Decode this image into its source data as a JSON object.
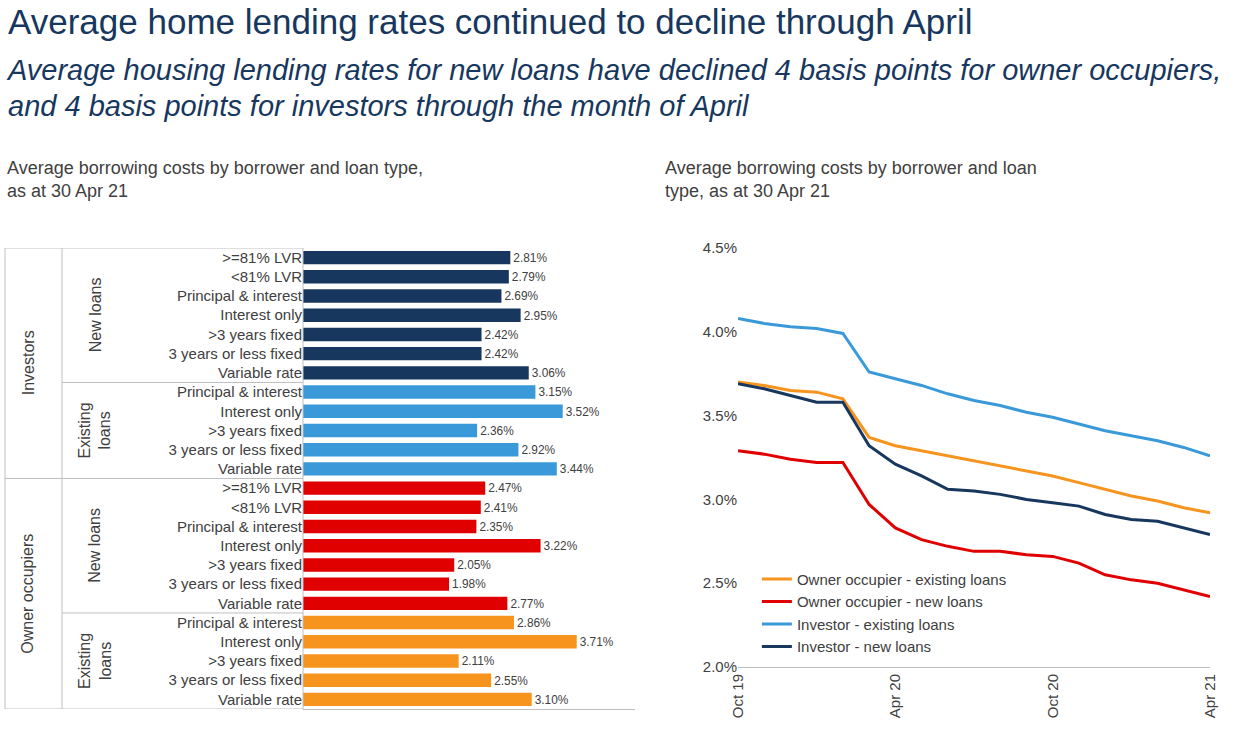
{
  "title": "Average home lending rates continued to decline through April",
  "subtitle": "Average housing lending rates for new loans have declined 4 basis points for owner occupiers, and 4 basis points for investors through the month of April",
  "chart_data": [
    {
      "type": "bar",
      "orientation": "horizontal",
      "title": "Average borrowing costs by borrower and loan type, as at 30 Apr 21",
      "data_labels": true,
      "tick_labels": "y",
      "grid": false,
      "xlim": [
        0,
        4.5
      ],
      "xticks": [],
      "groups": [
        {
          "name": "Investors",
          "subgroups": [
            {
              "name": "New loans",
              "color": "#17375e",
              "categories": [
                ">=81% LVR",
                "<81% LVR",
                "Principal & interest",
                "Interest only",
                ">3 years fixed",
                "3 years or less fixed",
                "Variable rate"
              ],
              "values": [
                2.81,
                2.79,
                2.69,
                2.95,
                2.42,
                2.42,
                3.06
              ],
              "value_labels": [
                "2.81%",
                "2.79%",
                "2.69%",
                "2.95%",
                "2.42%",
                "2.42%",
                "3.06%"
              ]
            },
            {
              "name": "Existing loans",
              "color": "#3a9ad9",
              "categories": [
                "Principal & interest",
                "Interest only",
                ">3 years fixed",
                "3 years or less fixed",
                "Variable rate"
              ],
              "values": [
                3.15,
                3.52,
                2.36,
                2.92,
                3.44
              ],
              "value_labels": [
                "3.15%",
                "3.52%",
                "2.36%",
                "2.92%",
                "3.44%"
              ]
            }
          ]
        },
        {
          "name": "Owner occupiers",
          "subgroups": [
            {
              "name": "New loans",
              "color": "#e00000",
              "categories": [
                ">=81% LVR",
                "<81% LVR",
                "Principal & interest",
                "Interest only",
                ">3 years fixed",
                "3 years or less fixed",
                "Variable rate"
              ],
              "values": [
                2.47,
                2.41,
                2.35,
                3.22,
                2.05,
                1.98,
                2.77
              ],
              "value_labels": [
                "2.47%",
                "2.41%",
                "2.35%",
                "3.22%",
                "2.05%",
                "1.98%",
                "2.77%"
              ]
            },
            {
              "name": "Existing loans",
              "color": "#f7941d",
              "categories": [
                "Principal & interest",
                "Interest only",
                ">3 years fixed",
                "3 years or less fixed",
                "Variable rate"
              ],
              "values": [
                2.86,
                3.71,
                2.11,
                2.55,
                3.1
              ],
              "value_labels": [
                "2.86%",
                "3.71%",
                "2.11%",
                "2.55%",
                "3.10%"
              ]
            }
          ]
        }
      ]
    },
    {
      "type": "line",
      "title": "Average borrowing costs by borrower and loan type, as at 30 Apr 21",
      "categories": [
        "Oct 19",
        null,
        null,
        null,
        null,
        null,
        "Apr 20",
        null,
        null,
        null,
        null,
        null,
        "Oct 20",
        null,
        null,
        null,
        null,
        null,
        "Apr 21"
      ],
      "series": [
        {
          "name": "Owner occupier - existing loans",
          "color": "#f7941d",
          "values": [
            3.7,
            3.68,
            3.65,
            3.64,
            3.6,
            3.37,
            3.32,
            3.29,
            3.26,
            3.23,
            3.2,
            3.17,
            3.14,
            3.1,
            3.06,
            3.02,
            2.99,
            2.95,
            2.92
          ]
        },
        {
          "name": "Owner occupier - new loans",
          "color": "#e00000",
          "values": [
            3.29,
            3.27,
            3.24,
            3.22,
            3.22,
            2.97,
            2.83,
            2.76,
            2.72,
            2.69,
            2.69,
            2.67,
            2.66,
            2.62,
            2.55,
            2.52,
            2.5,
            2.46,
            2.42
          ]
        },
        {
          "name": "Investor - existing loans",
          "color": "#3a9ad9",
          "values": [
            4.08,
            4.05,
            4.03,
            4.02,
            3.99,
            3.76,
            3.72,
            3.68,
            3.63,
            3.59,
            3.56,
            3.52,
            3.49,
            3.45,
            3.41,
            3.38,
            3.35,
            3.31,
            3.26
          ]
        },
        {
          "name": "Investor - new loans",
          "color": "#17375e",
          "values": [
            3.69,
            3.66,
            3.62,
            3.58,
            3.58,
            3.32,
            3.21,
            3.14,
            3.06,
            3.05,
            3.03,
            3.0,
            2.98,
            2.96,
            2.91,
            2.88,
            2.87,
            2.83,
            2.79
          ]
        }
      ],
      "ylim": [
        2.0,
        4.5
      ],
      "yticks": [
        {
          "value": 2.0,
          "label": "2.0%"
        },
        {
          "value": 2.5,
          "label": "2.5%"
        },
        {
          "value": 3.0,
          "label": "3.0%"
        },
        {
          "value": 3.5,
          "label": "3.5%"
        },
        {
          "value": 4.0,
          "label": "4.0%"
        },
        {
          "value": 4.5,
          "label": "4.5%"
        }
      ],
      "grid": false,
      "legend": "bottom left"
    }
  ]
}
